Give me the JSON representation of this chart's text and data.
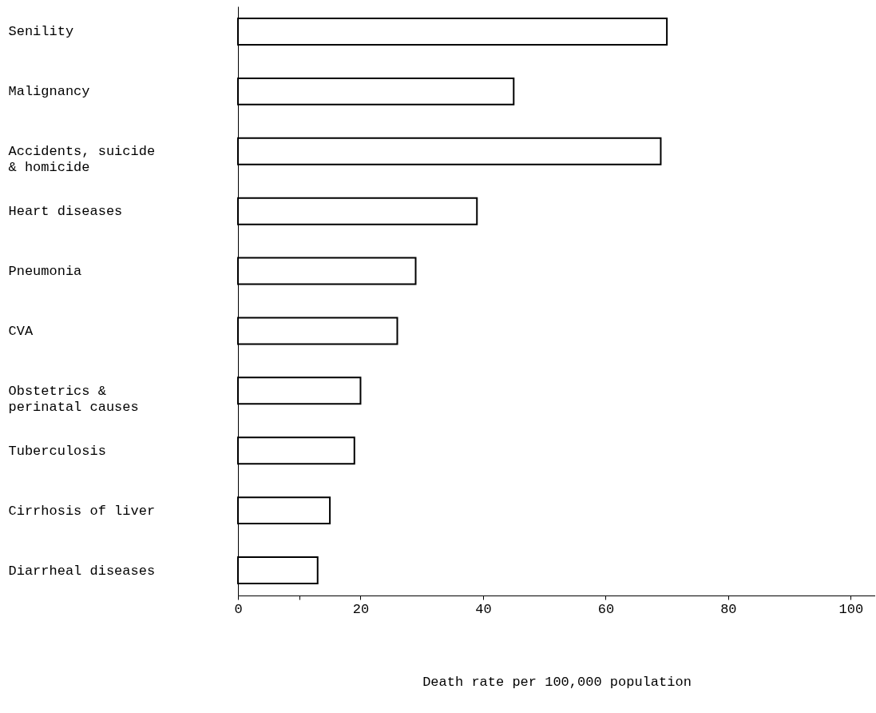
{
  "chart_data": {
    "type": "bar",
    "orientation": "horizontal",
    "categories": [
      "Senility",
      "Malignancy",
      "Accidents, suicide\n  & homicide",
      "Heart diseases",
      "Pneumonia",
      "CVA",
      "Obstetrics &\n perinatal causes",
      "Tuberculosis",
      "Cirrhosis of liver",
      "Diarrheal diseases"
    ],
    "values": [
      70,
      45,
      69,
      39,
      29,
      26,
      20,
      19,
      15,
      13
    ],
    "color": "#ffffff",
    "xlim": [
      0,
      104
    ],
    "xticks": [
      0,
      {
        "value": 10,
        "label": null
      },
      20,
      40,
      60,
      80,
      100
    ],
    "xlabel": "Death rate per 100,000 population",
    "grid": false
  }
}
